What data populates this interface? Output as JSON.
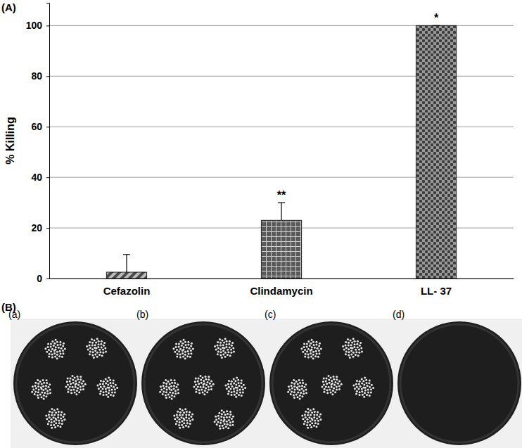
{
  "chart_data": {
    "type": "bar",
    "y_label": "% Killing",
    "categories": [
      "Cefazolin",
      "Clindamycin",
      "LL- 37"
    ],
    "values": [
      2.5,
      23,
      100
    ],
    "errors": [
      7,
      7,
      0
    ],
    "colors": [
      "#4a4a4a",
      "#5a5a5a",
      "#3c3c3c"
    ],
    "annotations": [
      {
        "category": "Clindamycin",
        "text": "**"
      },
      {
        "category": "LL- 37",
        "text": "*"
      }
    ],
    "ylim": [
      0,
      109
    ],
    "yticks": [
      0,
      20,
      40,
      60,
      80,
      100
    ],
    "grid": true
  },
  "figure": {
    "panel_labels": [
      "(A)",
      "(B)"
    ],
    "dishes": [
      {
        "label": "(a)",
        "colonies": true
      },
      {
        "label": "(b)",
        "colonies": true
      },
      {
        "label": "(c)",
        "colonies": true
      },
      {
        "label": "(d)",
        "colonies": false
      }
    ]
  }
}
